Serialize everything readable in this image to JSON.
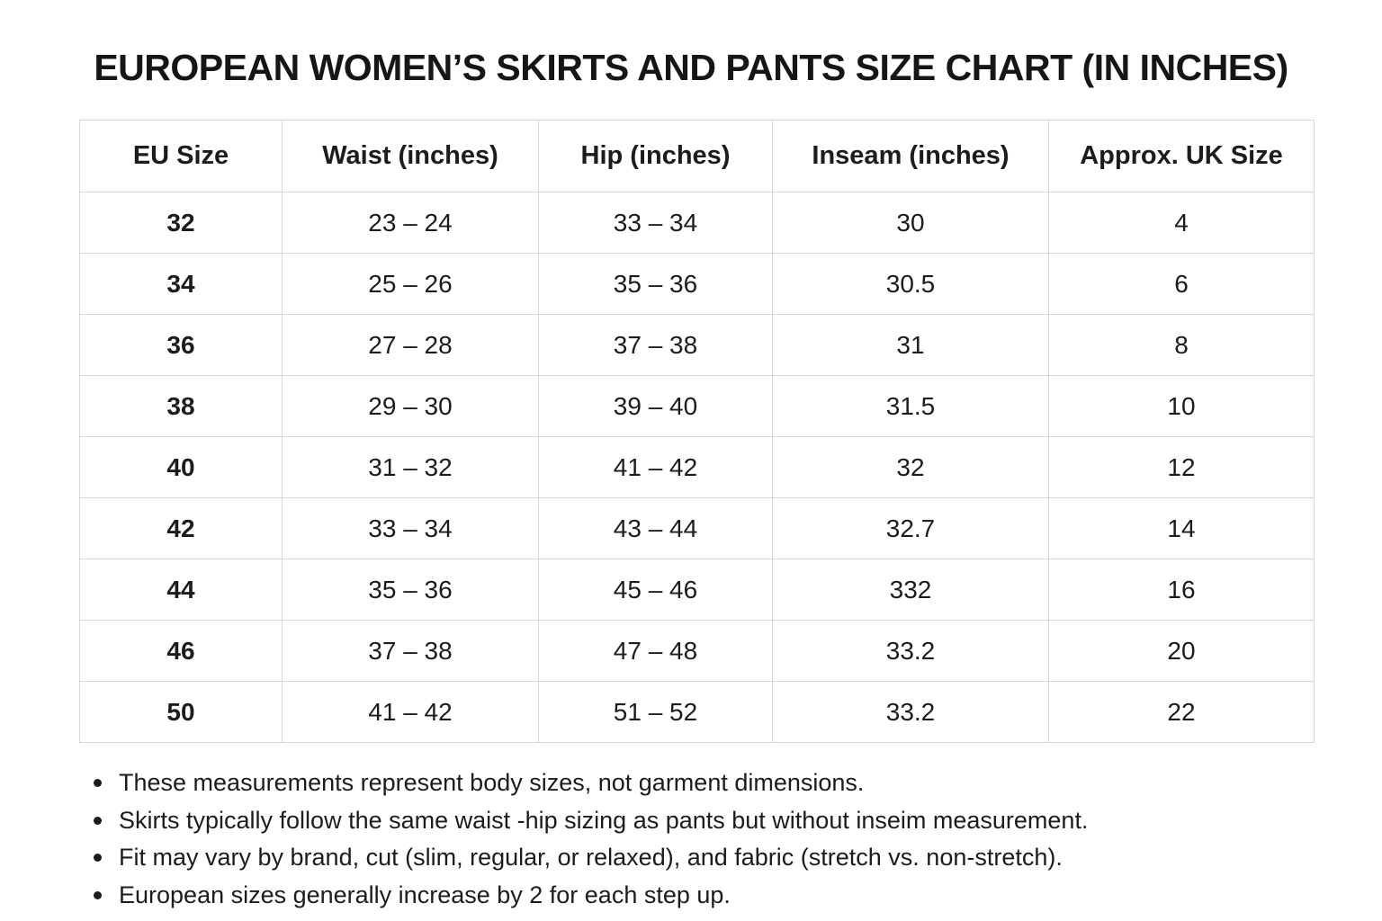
{
  "title": "EUROPEAN WOMEN’S SKIRTS AND PANTS SIZE CHART (IN INCHES)",
  "table": {
    "columns": [
      "EU Size",
      "Waist (inches)",
      "Hip (inches)",
      "Inseam (inches)",
      "Approx. UK Size"
    ],
    "rows": [
      {
        "eu_size": "32",
        "waist": "23 – 24",
        "hip": "33 – 34",
        "inseam": "30",
        "uk_size": "4"
      },
      {
        "eu_size": "34",
        "waist": "25 – 26",
        "hip": "35 – 36",
        "inseam": "30.5",
        "uk_size": "6"
      },
      {
        "eu_size": "36",
        "waist": "27 – 28",
        "hip": "37 – 38",
        "inseam": "31",
        "uk_size": "8"
      },
      {
        "eu_size": "38",
        "waist": "29 – 30",
        "hip": "39 – 40",
        "inseam": "31.5",
        "uk_size": "10"
      },
      {
        "eu_size": "40",
        "waist": "31 – 32",
        "hip": "41 – 42",
        "inseam": "32",
        "uk_size": "12"
      },
      {
        "eu_size": "42",
        "waist": "33 – 34",
        "hip": "43 – 44",
        "inseam": "32.7",
        "uk_size": "14"
      },
      {
        "eu_size": "44",
        "waist": "35 – 36",
        "hip": "45 – 46",
        "inseam": "332",
        "uk_size": "16"
      },
      {
        "eu_size": "46",
        "waist": "37 – 38",
        "hip": "47 – 48",
        "inseam": "33.2",
        "uk_size": "20"
      },
      {
        "eu_size": "50",
        "waist": "41 – 42",
        "hip": "51 – 52",
        "inseam": "33.2",
        "uk_size": "22"
      }
    ]
  },
  "notes": [
    "These measurements represent body sizes, not garment dimensions.",
    "Skirts typically follow the same waist -hip sizing as pants but without inseim measurement.",
    "Fit may vary by brand, cut (slim, regular, or relaxed), and fabric (stretch vs. non-stretch).",
    "European sizes generally increase by 2 for each step up."
  ],
  "colors": {
    "background": "#ffffff",
    "text": "#1c1c1c",
    "table_border": "#d7d7d7"
  }
}
